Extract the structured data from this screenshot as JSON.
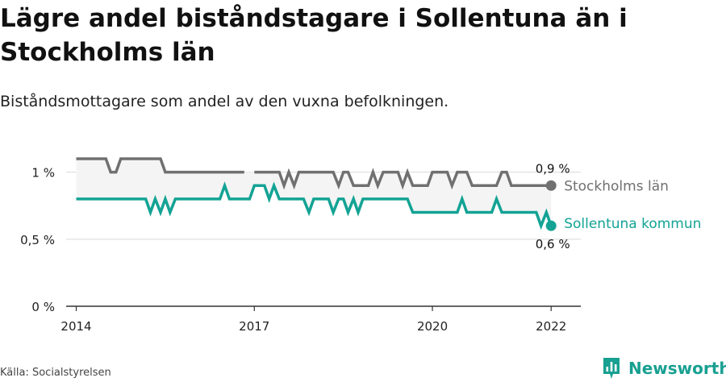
{
  "title": "Lägre andel biståndstagare i Sollentuna än i Stockholms län",
  "subtitle": "Biståndsmottagare som andel av den vuxna befolkningen.",
  "source": "Källa: Socialstyrelsen",
  "brand": {
    "name": "Newsworthy",
    "icon": "bar-chart-icon"
  },
  "colors": {
    "stockholm": "#707070",
    "sollentuna": "#13a394",
    "band": "#f4f4f4",
    "grid": "#d9d9d9",
    "axis": "#333333"
  },
  "chart_data": {
    "type": "line",
    "title": "Lägre andel biståndstagare i Sollentuna än i Stockholms län",
    "subtitle": "Biståndsmottagare som andel av den vuxna befolkningen.",
    "xlabel": "",
    "ylabel": "",
    "xlim": [
      2013.83,
      2022.5
    ],
    "ylim": [
      0,
      1.1
    ],
    "y_ticks": [
      0,
      0.5,
      1
    ],
    "y_tick_labels": [
      "0 %",
      "0,5 %",
      "1 %"
    ],
    "x_ticks": [
      2014,
      2017,
      2020,
      2022
    ],
    "x_tick_labels": [
      "2014",
      "2017",
      "2020",
      "2022"
    ],
    "grid": true,
    "shaded_between_series": true,
    "series": [
      {
        "name": "Stockholms län",
        "end_label": "0,9 %",
        "points": [
          [
            2014.0,
            1.1
          ],
          [
            2014.5,
            1.1
          ],
          [
            2014.58,
            1.0
          ],
          [
            2014.67,
            1.0
          ],
          [
            2014.75,
            1.1
          ],
          [
            2015.42,
            1.1
          ],
          [
            2015.5,
            1.0
          ],
          [
            2016.42,
            1.0
          ],
          [
            2016.5,
            1.0
          ],
          [
            2016.58,
            1.0
          ],
          [
            2016.67,
            1.0
          ],
          [
            2016.75,
            1.0
          ],
          [
            2016.83,
            1.0
          ],
          null,
          [
            2017.0,
            1.0
          ],
          [
            2017.42,
            1.0
          ],
          [
            2017.5,
            0.9
          ],
          [
            2017.58,
            1.0
          ],
          [
            2017.67,
            0.9
          ],
          [
            2017.75,
            1.0
          ],
          [
            2018.33,
            1.0
          ],
          [
            2018.42,
            0.9
          ],
          [
            2018.5,
            1.0
          ],
          [
            2018.58,
            1.0
          ],
          [
            2018.67,
            0.9
          ],
          [
            2018.92,
            0.9
          ],
          [
            2019.0,
            1.0
          ],
          [
            2019.08,
            0.9
          ],
          [
            2019.17,
            1.0
          ],
          [
            2019.42,
            1.0
          ],
          [
            2019.5,
            0.9
          ],
          [
            2019.58,
            1.0
          ],
          [
            2019.67,
            0.9
          ],
          [
            2019.92,
            0.9
          ],
          [
            2020.0,
            1.0
          ],
          [
            2020.25,
            1.0
          ],
          [
            2020.33,
            0.9
          ],
          [
            2020.42,
            1.0
          ],
          [
            2020.58,
            1.0
          ],
          [
            2020.67,
            0.9
          ],
          [
            2021.08,
            0.9
          ],
          [
            2021.17,
            1.0
          ],
          [
            2021.25,
            1.0
          ],
          [
            2021.33,
            0.9
          ],
          [
            2022.0,
            0.9
          ]
        ]
      },
      {
        "name": "Sollentuna kommun",
        "end_label": "0,6 %",
        "points": [
          [
            2014.0,
            0.8
          ],
          [
            2015.17,
            0.8
          ],
          [
            2015.25,
            0.7
          ],
          [
            2015.33,
            0.8
          ],
          [
            2015.42,
            0.7
          ],
          [
            2015.5,
            0.8
          ],
          [
            2015.58,
            0.7
          ],
          [
            2015.67,
            0.8
          ],
          [
            2016.42,
            0.8
          ],
          [
            2016.5,
            0.9
          ],
          [
            2016.58,
            0.8
          ],
          [
            2016.92,
            0.8
          ],
          [
            2017.0,
            0.9
          ],
          [
            2017.17,
            0.9
          ],
          [
            2017.25,
            0.8
          ],
          [
            2017.33,
            0.9
          ],
          [
            2017.42,
            0.8
          ],
          [
            2017.83,
            0.8
          ],
          [
            2017.92,
            0.7
          ],
          [
            2018.0,
            0.8
          ],
          [
            2018.25,
            0.8
          ],
          [
            2018.33,
            0.7
          ],
          [
            2018.42,
            0.8
          ],
          [
            2018.5,
            0.8
          ],
          [
            2018.58,
            0.7
          ],
          [
            2018.67,
            0.8
          ],
          [
            2018.75,
            0.7
          ],
          [
            2018.83,
            0.8
          ],
          [
            2019.58,
            0.8
          ],
          [
            2019.67,
            0.7
          ],
          [
            2020.42,
            0.7
          ],
          [
            2020.5,
            0.8
          ],
          [
            2020.58,
            0.7
          ],
          [
            2021.0,
            0.7
          ],
          [
            2021.08,
            0.8
          ],
          [
            2021.17,
            0.7
          ],
          [
            2021.75,
            0.7
          ],
          [
            2021.83,
            0.6
          ],
          [
            2021.92,
            0.7
          ],
          [
            2022.0,
            0.6
          ]
        ]
      }
    ]
  }
}
